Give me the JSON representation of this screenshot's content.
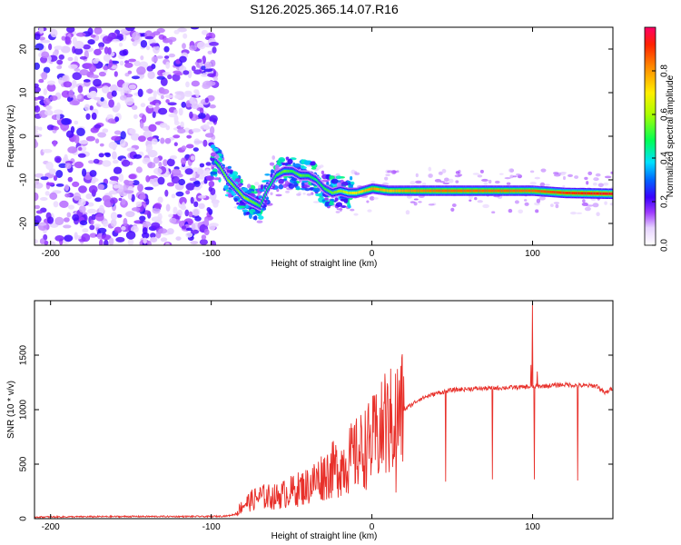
{
  "title": "S126.2025.365.14.07.R16",
  "chart_data": [
    {
      "type": "heatmap",
      "name": "spectrogram",
      "xlabel": "Height of straight line (km)",
      "ylabel": "Frequency (Hz)",
      "xlim": [
        -210,
        150
      ],
      "ylim": [
        -25,
        25
      ],
      "xticks": [
        -200,
        -100,
        0,
        100
      ],
      "yticks": [
        -20,
        -10,
        0,
        10,
        20
      ],
      "noise_region_x": [
        -210,
        -97
      ],
      "signal_trace": {
        "x": [
          -100,
          -95,
          -90,
          -85,
          -80,
          -75,
          -70,
          -65,
          -60,
          -55,
          -50,
          -45,
          -40,
          -35,
          -30,
          -25,
          -20,
          -15,
          -10,
          -5,
          0,
          10,
          20,
          40,
          60,
          80,
          100,
          120,
          150
        ],
        "freq": [
          -5,
          -7,
          -10,
          -12,
          -14,
          -15,
          -16,
          -12,
          -9,
          -8,
          -8,
          -9,
          -9,
          -10,
          -12,
          -13,
          -12.5,
          -13,
          -13,
          -12.5,
          -12,
          -12.5,
          -12.5,
          -12.5,
          -12.5,
          -12.5,
          -12.5,
          -13,
          -13.2
        ],
        "amplitude": [
          0.4,
          0.55,
          0.6,
          0.55,
          0.6,
          0.55,
          0.5,
          0.45,
          0.5,
          0.55,
          0.5,
          0.55,
          0.5,
          0.45,
          0.5,
          0.55,
          0.6,
          0.65,
          0.7,
          0.75,
          0.8,
          0.75,
          0.8,
          0.85,
          0.85,
          0.85,
          0.85,
          0.9,
          0.95
        ]
      },
      "colorbar": {
        "label": "Normalized spectral amplitude",
        "range": [
          0,
          1
        ],
        "ticks": [
          "0.0",
          "0.2",
          "0.4",
          "0.6",
          "0.8"
        ],
        "tick_values": [
          0.0,
          0.2,
          0.4,
          0.6,
          0.8
        ]
      }
    },
    {
      "type": "line",
      "name": "snr",
      "xlabel": "Height of straight line (km)",
      "ylabel": "SNR (10 * v/v)",
      "xlim": [
        -210,
        150
      ],
      "ylim": [
        0,
        2000
      ],
      "xticks": [
        -200,
        -100,
        0,
        100
      ],
      "yticks": [
        0,
        500,
        1000,
        1500
      ],
      "color": "#e8302a",
      "envelope": {
        "x": [
          -210,
          -150,
          -100,
          -90,
          -85,
          -80,
          -70,
          -60,
          -50,
          -40,
          -30,
          -20,
          -10,
          0,
          10,
          20,
          30,
          40,
          50,
          60,
          80,
          100,
          110,
          120,
          130,
          140,
          145,
          150
        ],
        "y": [
          15,
          20,
          20,
          25,
          40,
          130,
          200,
          200,
          250,
          300,
          400,
          480,
          580,
          700,
          850,
          1000,
          1100,
          1150,
          1180,
          1190,
          1200,
          1210,
          1220,
          1230,
          1220,
          1220,
          1150,
          1200
        ]
      },
      "spikes": [
        {
          "x": 8,
          "y": 1330
        },
        {
          "x": 11,
          "y": 1100
        },
        {
          "x": 15,
          "y": 240
        },
        {
          "x": 46,
          "y": 340
        },
        {
          "x": 75,
          "y": 360
        },
        {
          "x": 99,
          "y": 1410
        },
        {
          "x": 100,
          "y": 1980
        },
        {
          "x": 101,
          "y": 360
        },
        {
          "x": 103,
          "y": 1350
        },
        {
          "x": 128,
          "y": 350
        }
      ]
    }
  ]
}
